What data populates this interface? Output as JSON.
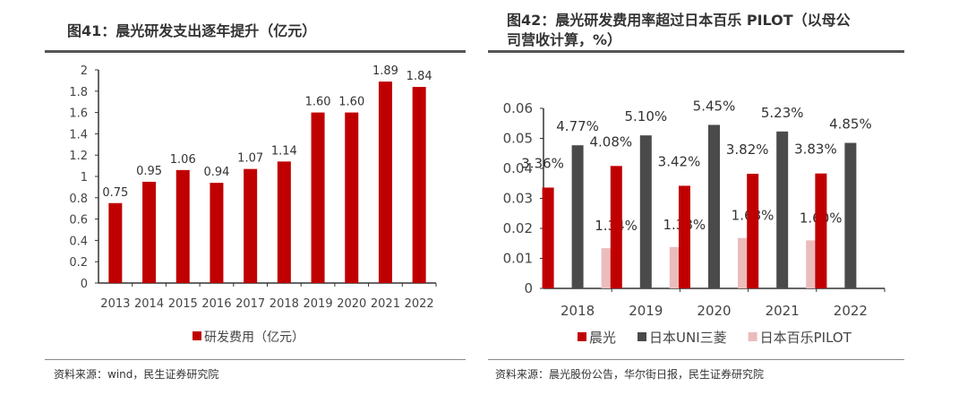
{
  "left": {
    "title": "图41：晨光研发支出逐年提升（亿元）",
    "source": "资料来源：wind，民生证券研究院"
  },
  "right": {
    "title_line1": "图42：晨光研发费用率超过日本百乐 PILOT（以母公",
    "title_line2": "司营收计算，%）",
    "source": "资料来源：晨光股份公告，华尔街日报，民生证券研究院"
  },
  "chart_data": [
    {
      "type": "bar",
      "categories": [
        "2013",
        "2014",
        "2015",
        "2016",
        "2017",
        "2018",
        "2019",
        "2020",
        "2021",
        "2022"
      ],
      "series": [
        {
          "name": "研发费用（亿元）",
          "values": [
            0.75,
            0.95,
            1.06,
            0.94,
            1.07,
            1.14,
            1.6,
            1.6,
            1.89,
            1.84
          ],
          "labels": [
            "0.75",
            "0.95",
            "1.06",
            "0.94",
            "1.07",
            "1.14",
            "1.60",
            "1.60",
            "1.89",
            "1.84"
          ],
          "color": "#c00000"
        }
      ],
      "ylim": [
        0,
        2
      ],
      "yticks": [
        "0",
        "0.2",
        "0.4",
        "0.6",
        "0.8",
        "1",
        "1.2",
        "1.4",
        "1.6",
        "1.8",
        "2"
      ],
      "grid": false,
      "legend": "bottom"
    },
    {
      "type": "bar",
      "categories": [
        "2018",
        "2019",
        "2020",
        "2021",
        "2022"
      ],
      "series": [
        {
          "name": "晨光",
          "values": [
            0.0336,
            0.0408,
            0.0342,
            0.0382,
            0.0383
          ],
          "labels": [
            "3.36%",
            "4.08%",
            "3.42%",
            "3.82%",
            "3.83%"
          ],
          "color": "#c00000"
        },
        {
          "name": "日本UNI三菱",
          "values": [
            0.0477,
            0.051,
            0.0545,
            0.0523,
            0.0485
          ],
          "labels": [
            "4.77%",
            "5.10%",
            "5.45%",
            "5.23%",
            "4.85%"
          ],
          "color": "#4a4a4a"
        },
        {
          "name": "日本百乐PILOT",
          "values": [
            0.0134,
            0.0138,
            0.0168,
            0.016,
            null
          ],
          "labels": [
            "1.34%",
            "1.38%",
            "1.68%",
            "1.60%",
            null
          ],
          "color": "#ebbcbc"
        }
      ],
      "ylim": [
        0,
        0.06
      ],
      "yticks": [
        "0",
        "0.01",
        "0.02",
        "0.03",
        "0.04",
        "0.05",
        "0.06"
      ],
      "grid": false,
      "legend": "bottom"
    }
  ]
}
